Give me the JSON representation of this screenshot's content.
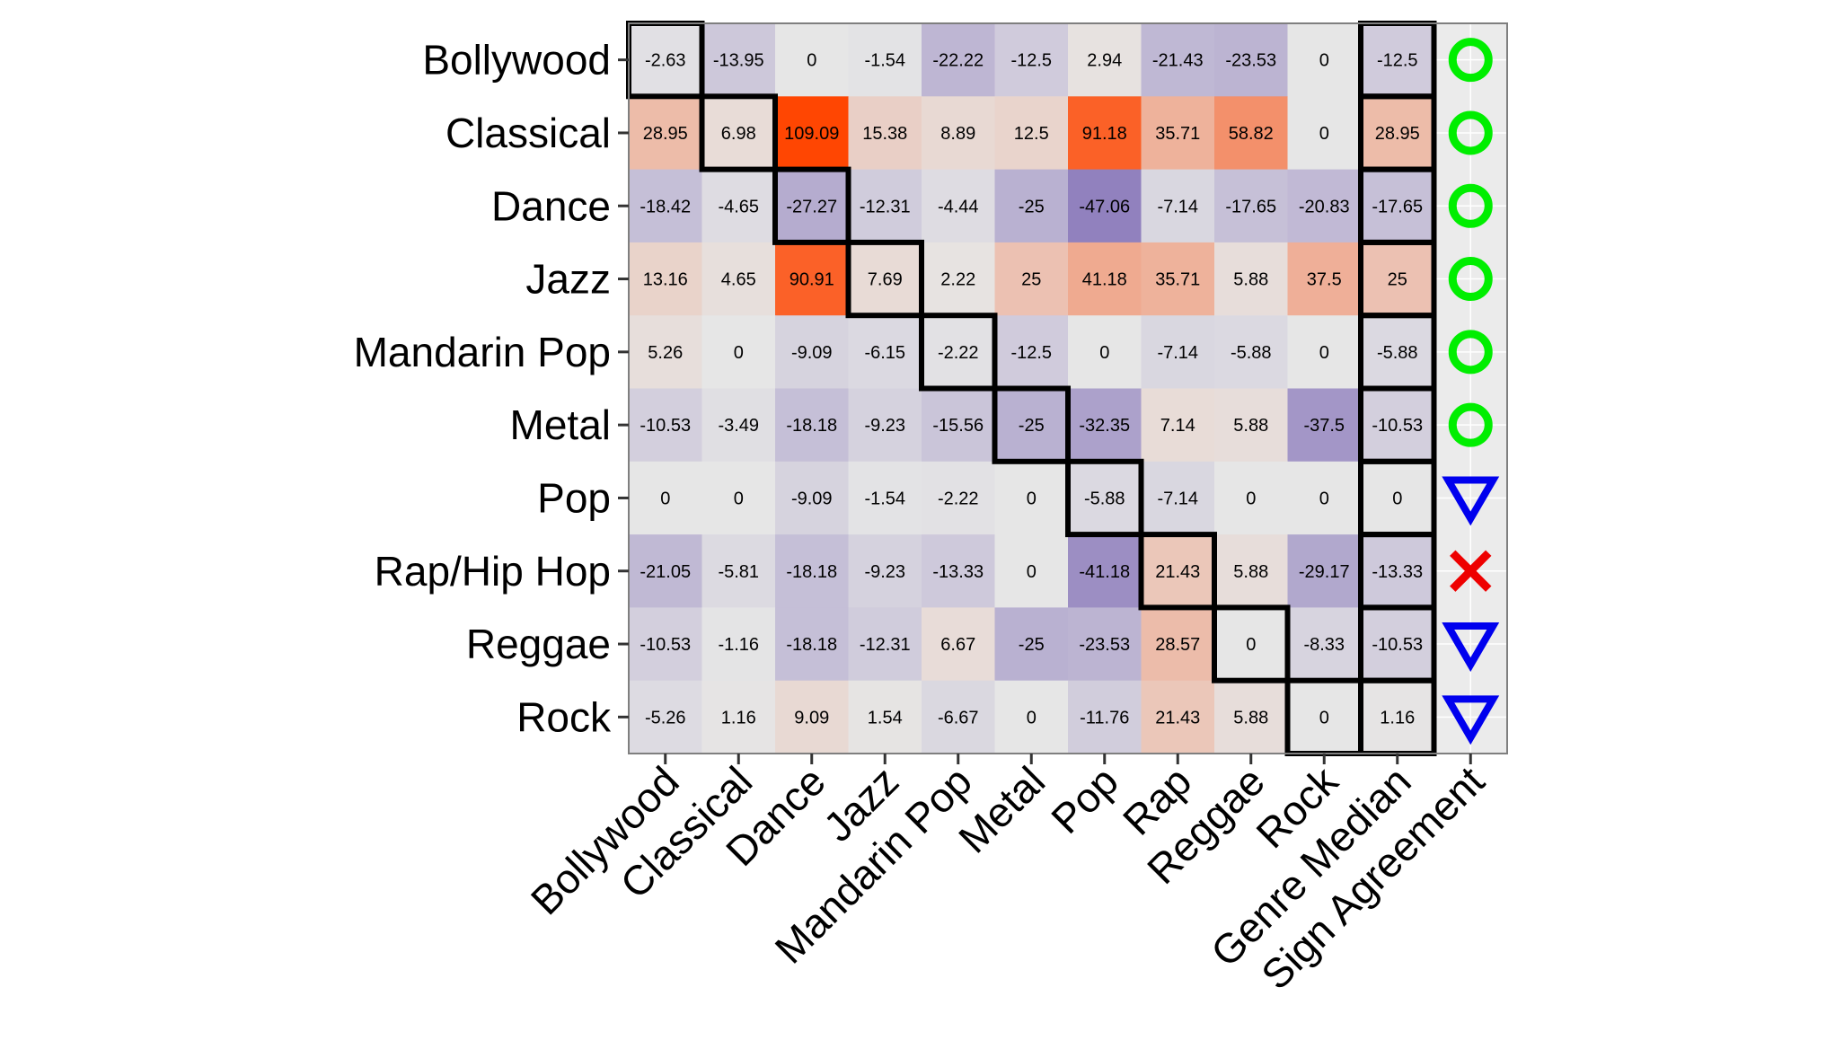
{
  "chart_data": {
    "type": "heatmap",
    "title": "",
    "xlabel": "",
    "ylabel": "",
    "rows": [
      "Bollywood",
      "Classical",
      "Dance",
      "Jazz",
      "Mandarin Pop",
      "Metal",
      "Pop",
      "Rap/Hip Hop",
      "Reggae",
      "Rock"
    ],
    "columns": [
      "Bollywood",
      "Classical",
      "Dance",
      "Jazz",
      "Mandarin Pop",
      "Metal",
      "Pop",
      "Rap",
      "Reggae",
      "Rock",
      "Genre Median",
      "Sign Agreement"
    ],
    "value_labels": [
      [
        "-2.63",
        "-13.95",
        "0",
        "-1.54",
        "-22.22",
        "-12.5",
        "2.94",
        "-21.43",
        "-23.53",
        "0",
        "-12.5"
      ],
      [
        "28.95",
        "6.98",
        "109.09",
        "15.38",
        "8.89",
        "12.5",
        "91.18",
        "35.71",
        "58.82",
        "0",
        "28.95"
      ],
      [
        "-18.42",
        "-4.65",
        "-27.27",
        "-12.31",
        "-4.44",
        "-25",
        "-47.06",
        "-7.14",
        "-17.65",
        "-20.83",
        "-17.65"
      ],
      [
        "13.16",
        "4.65",
        "90.91",
        "7.69",
        "2.22",
        "25",
        "41.18",
        "35.71",
        "5.88",
        "37.5",
        "25"
      ],
      [
        "5.26",
        "0",
        "-9.09",
        "-6.15",
        "-2.22",
        "-12.5",
        "0",
        "-7.14",
        "-5.88",
        "0",
        "-5.88"
      ],
      [
        "-10.53",
        "-3.49",
        "-18.18",
        "-9.23",
        "-15.56",
        "-25",
        "-32.35",
        "7.14",
        "5.88",
        "-37.5",
        "-10.53"
      ],
      [
        "0",
        "0",
        "-9.09",
        "-1.54",
        "-2.22",
        "0",
        "-5.88",
        "-7.14",
        "0",
        "0",
        "0"
      ],
      [
        "-21.05",
        "-5.81",
        "-18.18",
        "-9.23",
        "-13.33",
        "0",
        "-41.18",
        "21.43",
        "5.88",
        "-29.17",
        "-13.33"
      ],
      [
        "-10.53",
        "-1.16",
        "-18.18",
        "-12.31",
        "6.67",
        "-25",
        "-23.53",
        "28.57",
        "0",
        "-8.33",
        "-10.53"
      ],
      [
        "-5.26",
        "1.16",
        "9.09",
        "1.54",
        "-6.67",
        "0",
        "-11.76",
        "21.43",
        "5.88",
        "0",
        "1.16"
      ]
    ],
    "sign_agreement": [
      "circle",
      "circle",
      "circle",
      "circle",
      "circle",
      "circle",
      "triangle-down",
      "cross",
      "triangle-down",
      "triangle-down"
    ],
    "symbol_colors": {
      "circle": "#00ee00",
      "triangle-down": "#0000ee",
      "cross": "#ee0000"
    },
    "color_scale": {
      "negative": "#8c7bbc",
      "zero": "#e6e6e6",
      "positive": "#ff4500",
      "neg_limit": -50,
      "pos_limit": 110
    },
    "highlight": {
      "diagonal": true,
      "column": "Genre Median"
    },
    "panel_background": "#ebebeb",
    "grid": true,
    "legend": "none"
  }
}
